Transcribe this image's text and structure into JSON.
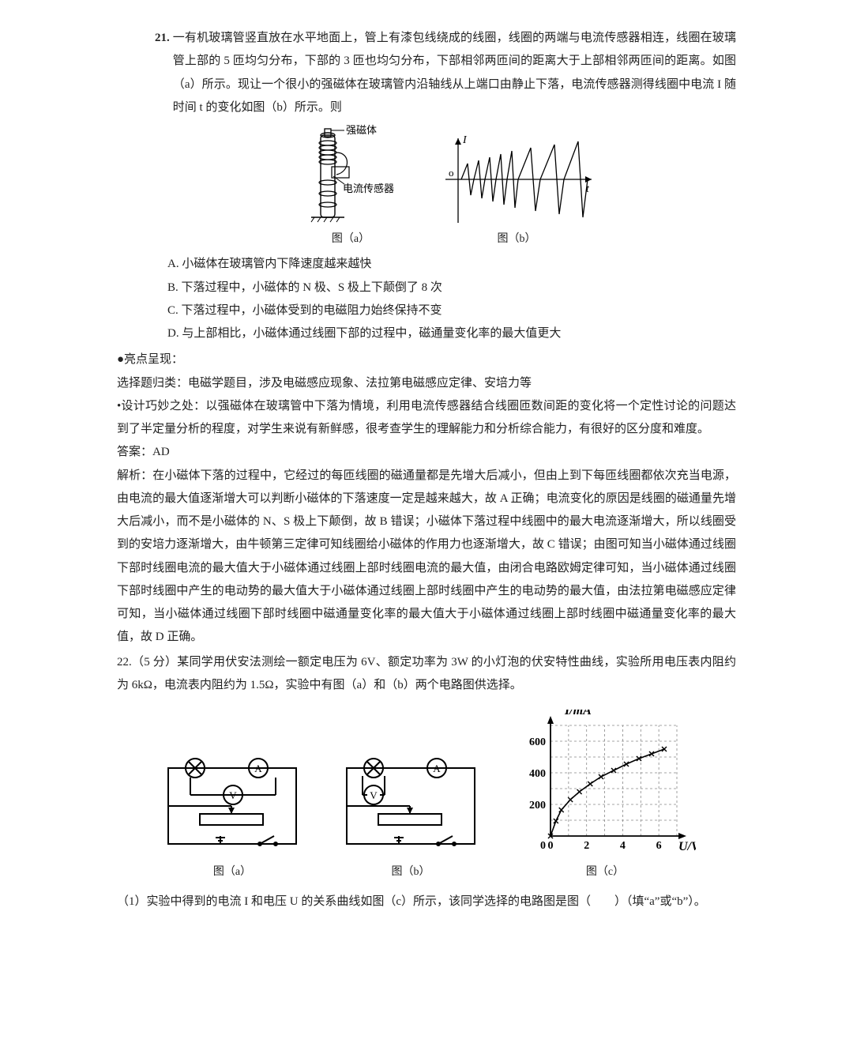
{
  "q21": {
    "number": "21.",
    "stem": "一有机玻璃管竖直放在水平地面上，管上有漆包线绕成的线圈，线圈的两端与电流传感器相连，线圈在玻璃管上部的 5 匝均匀分布，下部的 3 匝也均匀分布，下部相邻两匝间的距离大于上部相邻两匝间的距离。如图（a）所示。现让一个很小的强磁体在玻璃管内沿轴线从上端口由静止下落，电流传感器测得线圈中电流 I 随时间 t 的变化如图（b）所示。则",
    "fig_a_label_mag": "强磁体",
    "fig_a_label_sensor": "电流传感器",
    "fig_a_caption": "图（a）",
    "fig_b_caption": "图（b）",
    "choice_a": "A. 小磁体在玻璃管内下降速度越来越快",
    "choice_b": "B. 下落过程中，小磁体的 N 极、S 极上下颠倒了 8 次",
    "choice_c": "C. 下落过程中，小磁体受到的电磁阻力始终保持不变",
    "choice_d": "D. 与上部相比，小磁体通过线圈下部的过程中，磁通量变化率的最大值更大"
  },
  "highlight": {
    "heading": "●亮点呈现：",
    "p1": "选择题归类：电磁学题目，涉及电磁感应现象、法拉第电磁感应定律、安培力等",
    "p2": "•设计巧妙之处：以强磁体在玻璃管中下落为情境，利用电流传感器结合线圈匝数间距的变化将一个定性讨论的问题达到了半定量分析的程度，对学生来说有新鲜感，很考查学生的理解能力和分析综合能力，有很好的区分度和难度。",
    "ans_label": "答案：AD",
    "sol": "解析：在小磁体下落的过程中，它经过的每匝线圈的磁通量都是先增大后减小，但由上到下每匝线圈都依次充当电源，由电流的最大值逐渐增大可以判断小磁体的下落速度一定是越来越大，故 A 正确；电流变化的原因是线圈的磁通量先增大后减小，而不是小磁体的 N、S 极上下颠倒，故 B 错误；小磁体下落过程中线圈中的最大电流逐渐增大，所以线圈受到的安培力逐渐增大，由牛顿第三定律可知线圈给小磁体的作用力也逐渐增大，故 C 错误；由图可知当小磁体通过线圈下部时线圈电流的最大值大于小磁体通过线圈上部时线圈电流的最大值，由闭合电路欧姆定律可知，当小磁体通过线圈下部时线圈中产生的电动势的最大值大于小磁体通过线圈上部时线圈中产生的电动势的最大值，由法拉第电磁感应定律可知，当小磁体通过线圈下部时线圈中磁通量变化率的最大值大于小磁体通过线圈上部时线圈中磁通量变化率的最大值，故 D 正确。"
  },
  "q22": {
    "number": "22.",
    "stem": "（5 分）某同学用伏安法测绘一额定电压为 6V、额定功率为 3W 的小灯泡的伏安特性曲线，实验所用电压表内阻约为 6kΩ，电流表内阻约为 1.5Ω，实验中有图（a）和（b）两个电路图供选择。",
    "fig_a_caption": "图（a）",
    "fig_b_caption": "图（b）",
    "fig_c_caption": "图（c）",
    "sub1": "（1）实验中得到的电流 I 和电压 U 的关系曲线如图（c）所示，该同学选择的电路图是图（　　）（填“a”或“b”）。",
    "chart": {
      "y_label": "I/mA",
      "x_label": "U/V",
      "y_ticks": [
        0,
        200,
        400,
        600
      ],
      "x_ticks": [
        0,
        2,
        4,
        6
      ],
      "points": [
        [
          0.0,
          0
        ],
        [
          0.3,
          95
        ],
        [
          0.6,
          165
        ],
        [
          1.1,
          230
        ],
        [
          1.6,
          280
        ],
        [
          2.2,
          330
        ],
        [
          2.8,
          375
        ],
        [
          3.5,
          415
        ],
        [
          4.2,
          455
        ],
        [
          4.9,
          490
        ],
        [
          5.6,
          520
        ],
        [
          6.3,
          550
        ]
      ],
      "point_color": "#000000",
      "grid_color": "#888888",
      "axis_color": "#000000",
      "ylim": [
        0,
        700
      ],
      "xlim": [
        0,
        7
      ]
    }
  }
}
